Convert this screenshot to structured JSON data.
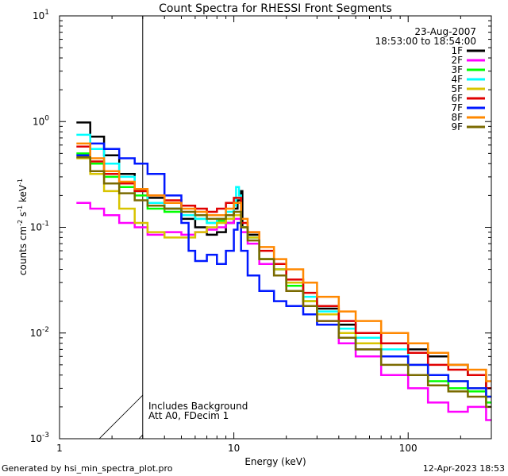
{
  "chart_data": {
    "type": "line",
    "scale": "log-log",
    "title": "Count Spectra for RHESSI Front Segments",
    "xlabel": "Energy (keV)",
    "ylabel_parts": {
      "counts": "counts cm",
      "e1": "-2",
      "s": " s",
      "e2": "-1",
      "kev": " keV",
      "e3": "-1"
    },
    "xlim": [
      1,
      300
    ],
    "ylim": [
      0.001,
      10
    ],
    "x_ticks": [
      {
        "v": 1,
        "label": "1"
      },
      {
        "v": 10,
        "label": "10"
      },
      {
        "v": 100,
        "label": "100"
      }
    ],
    "y_ticks": [
      {
        "v": 0.001,
        "base": "10",
        "exp": "-3"
      },
      {
        "v": 0.01,
        "base": "10",
        "exp": "-2"
      },
      {
        "v": 0.1,
        "base": "10",
        "exp": "-1"
      },
      {
        "v": 1,
        "base": "10",
        "exp": "0"
      },
      {
        "v": 10,
        "base": "10",
        "exp": "1"
      }
    ],
    "hatched_region_kev": [
      1,
      3
    ],
    "legend": {
      "date": "23-Aug-2007",
      "time_range": "18:53:00 to 18:54:00",
      "entries": [
        {
          "name": "1F",
          "color": "#000000"
        },
        {
          "name": "2F",
          "color": "#ff00ff"
        },
        {
          "name": "3F",
          "color": "#00ff00"
        },
        {
          "name": "4F",
          "color": "#00ffff"
        },
        {
          "name": "5F",
          "color": "#d8c400"
        },
        {
          "name": "6F",
          "color": "#e00000"
        },
        {
          "name": "7F",
          "color": "#0018ff"
        },
        {
          "name": "8F",
          "color": "#ff8800"
        },
        {
          "name": "9F",
          "color": "#7a6a00"
        }
      ]
    },
    "annotations": [
      "Includes Background",
      "Att A0, FDecim 1"
    ],
    "series": [
      {
        "name": "1F",
        "color": "#000000",
        "x": [
          1.25,
          1.5,
          1.8,
          2.2,
          2.7,
          3.2,
          4,
          5,
          6,
          7,
          8,
          9,
          10,
          10.5,
          11,
          11.2,
          12,
          14,
          17,
          20,
          25,
          30,
          40,
          50,
          70,
          100,
          130,
          170,
          220,
          280
        ],
        "y": [
          0.98,
          0.72,
          0.48,
          0.32,
          0.22,
          0.19,
          0.15,
          0.12,
          0.1,
          0.085,
          0.09,
          0.11,
          0.15,
          0.18,
          0.22,
          0.1,
          0.085,
          0.05,
          0.04,
          0.028,
          0.02,
          0.017,
          0.012,
          0.01,
          0.008,
          0.007,
          0.006,
          0.005,
          0.004,
          0.003
        ]
      },
      {
        "name": "2F",
        "color": "#ff00ff",
        "x": [
          1.25,
          1.5,
          1.8,
          2.2,
          2.7,
          3.2,
          4,
          5,
          6,
          7,
          8,
          9,
          10,
          11,
          12,
          14,
          17,
          20,
          25,
          30,
          40,
          50,
          70,
          100,
          130,
          170,
          220,
          280
        ],
        "y": [
          0.17,
          0.15,
          0.13,
          0.11,
          0.1,
          0.085,
          0.09,
          0.085,
          0.09,
          0.095,
          0.1,
          0.11,
          0.12,
          0.09,
          0.07,
          0.045,
          0.035,
          0.025,
          0.018,
          0.013,
          0.008,
          0.006,
          0.004,
          0.003,
          0.0022,
          0.0018,
          0.002,
          0.0015
        ]
      },
      {
        "name": "3F",
        "color": "#00ff00",
        "x": [
          1.25,
          1.5,
          1.8,
          2.2,
          2.7,
          3.2,
          4,
          5,
          6,
          7,
          8,
          9,
          10,
          11,
          12,
          14,
          17,
          20,
          25,
          30,
          40,
          50,
          70,
          100,
          130,
          170,
          220,
          280
        ],
        "y": [
          0.5,
          0.4,
          0.3,
          0.24,
          0.2,
          0.15,
          0.14,
          0.13,
          0.12,
          0.11,
          0.115,
          0.12,
          0.13,
          0.1,
          0.08,
          0.05,
          0.035,
          0.028,
          0.02,
          0.015,
          0.01,
          0.008,
          0.006,
          0.004,
          0.0035,
          0.003,
          0.0028,
          0.0022
        ]
      },
      {
        "name": "4F",
        "color": "#00ffff",
        "x": [
          1.25,
          1.5,
          1.8,
          2.2,
          2.7,
          3.2,
          4,
          5,
          6,
          7,
          8,
          9,
          10,
          10.3,
          10.7,
          11,
          12,
          14,
          17,
          20,
          25,
          30,
          40,
          50,
          70,
          100,
          130,
          170,
          220,
          280
        ],
        "y": [
          0.75,
          0.55,
          0.4,
          0.3,
          0.22,
          0.17,
          0.15,
          0.13,
          0.12,
          0.11,
          0.12,
          0.14,
          0.16,
          0.24,
          0.2,
          0.1,
          0.08,
          0.05,
          0.04,
          0.03,
          0.022,
          0.016,
          0.011,
          0.009,
          0.007,
          0.005,
          0.004,
          0.0035,
          0.003,
          0.0025
        ]
      },
      {
        "name": "5F",
        "color": "#d8c400",
        "x": [
          1.25,
          1.5,
          1.8,
          2.2,
          2.7,
          3.2,
          4,
          5,
          6,
          7,
          8,
          9,
          10,
          11,
          12,
          14,
          17,
          20,
          25,
          30,
          40,
          50,
          70,
          100,
          130,
          170,
          220,
          280
        ],
        "y": [
          0.45,
          0.32,
          0.22,
          0.15,
          0.11,
          0.09,
          0.08,
          0.08,
          0.09,
          0.1,
          0.11,
          0.12,
          0.13,
          0.1,
          0.08,
          0.05,
          0.04,
          0.03,
          0.02,
          0.015,
          0.01,
          0.008,
          0.006,
          0.005,
          0.004,
          0.0035,
          0.003,
          0.0025
        ]
      },
      {
        "name": "6F",
        "color": "#e00000",
        "x": [
          1.25,
          1.5,
          1.8,
          2.2,
          2.7,
          3.2,
          4,
          5,
          6,
          7,
          8,
          9,
          10,
          11,
          12,
          14,
          17,
          20,
          25,
          30,
          40,
          50,
          70,
          100,
          130,
          170,
          220,
          280
        ],
        "y": [
          0.58,
          0.42,
          0.32,
          0.26,
          0.22,
          0.2,
          0.18,
          0.16,
          0.15,
          0.14,
          0.15,
          0.17,
          0.19,
          0.11,
          0.09,
          0.06,
          0.045,
          0.032,
          0.024,
          0.018,
          0.013,
          0.01,
          0.008,
          0.0065,
          0.005,
          0.0045,
          0.004,
          0.003
        ]
      },
      {
        "name": "7F",
        "color": "#0018ff",
        "x": [
          1.25,
          1.5,
          1.8,
          2.2,
          2.7,
          3.2,
          4,
          5,
          5.5,
          6,
          7,
          8,
          9,
          10,
          10.5,
          11,
          12,
          14,
          17,
          20,
          25,
          30,
          40,
          50,
          70,
          100,
          130,
          170,
          220,
          280
        ],
        "y": [
          0.48,
          0.62,
          0.55,
          0.45,
          0.4,
          0.32,
          0.2,
          0.11,
          0.06,
          0.048,
          0.055,
          0.045,
          0.06,
          0.095,
          0.11,
          0.06,
          0.035,
          0.025,
          0.02,
          0.018,
          0.015,
          0.012,
          0.009,
          0.007,
          0.006,
          0.005,
          0.004,
          0.0035,
          0.003,
          0.0025
        ]
      },
      {
        "name": "8F",
        "color": "#ff8800",
        "x": [
          1.25,
          1.5,
          1.8,
          2.2,
          2.7,
          3.2,
          4,
          5,
          6,
          7,
          8,
          9,
          10,
          11,
          12,
          14,
          17,
          20,
          25,
          30,
          40,
          50,
          70,
          100,
          130,
          170,
          220,
          280
        ],
        "y": [
          0.62,
          0.45,
          0.34,
          0.27,
          0.23,
          0.2,
          0.17,
          0.15,
          0.14,
          0.13,
          0.13,
          0.15,
          0.17,
          0.12,
          0.09,
          0.065,
          0.05,
          0.04,
          0.03,
          0.022,
          0.016,
          0.013,
          0.01,
          0.008,
          0.0065,
          0.005,
          0.0045,
          0.0035
        ]
      },
      {
        "name": "9F",
        "color": "#7a6a00",
        "x": [
          1.25,
          1.5,
          1.8,
          2.2,
          2.7,
          3.2,
          4,
          5,
          6,
          7,
          8,
          9,
          10,
          11,
          12,
          14,
          17,
          20,
          25,
          30,
          40,
          50,
          70,
          100,
          130,
          170,
          220,
          280
        ],
        "y": [
          0.46,
          0.34,
          0.26,
          0.21,
          0.18,
          0.16,
          0.15,
          0.14,
          0.13,
          0.12,
          0.12,
          0.13,
          0.14,
          0.1,
          0.075,
          0.05,
          0.035,
          0.025,
          0.018,
          0.013,
          0.009,
          0.007,
          0.005,
          0.004,
          0.0032,
          0.0028,
          0.0025,
          0.002
        ]
      }
    ]
  },
  "footer": {
    "generated_by": "Generated by hsi_min_spectra_plot.pro",
    "timestamp": "12-Apr-2023 18:53"
  }
}
